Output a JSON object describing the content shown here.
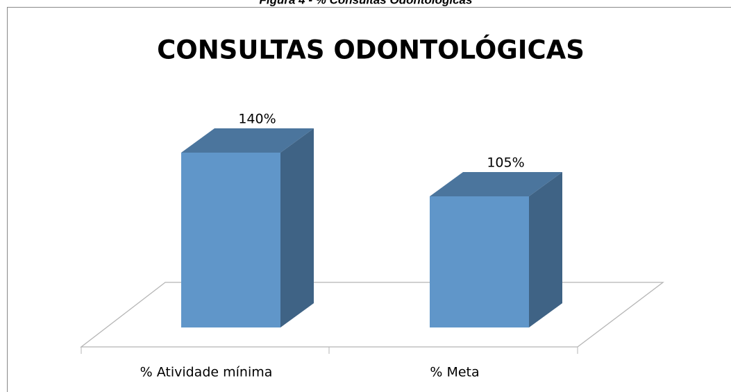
{
  "chart_data": {
    "type": "bar3d",
    "caption": "Figura 4 - % Consultas Odontológicas",
    "title": "CONSULTAS ODONTOLÓGICAS",
    "categories": [
      "% Atividade mínima",
      "% Meta"
    ],
    "values": [
      140,
      105
    ],
    "value_labels": [
      "140%",
      "105%"
    ],
    "color": "#6096c9"
  }
}
